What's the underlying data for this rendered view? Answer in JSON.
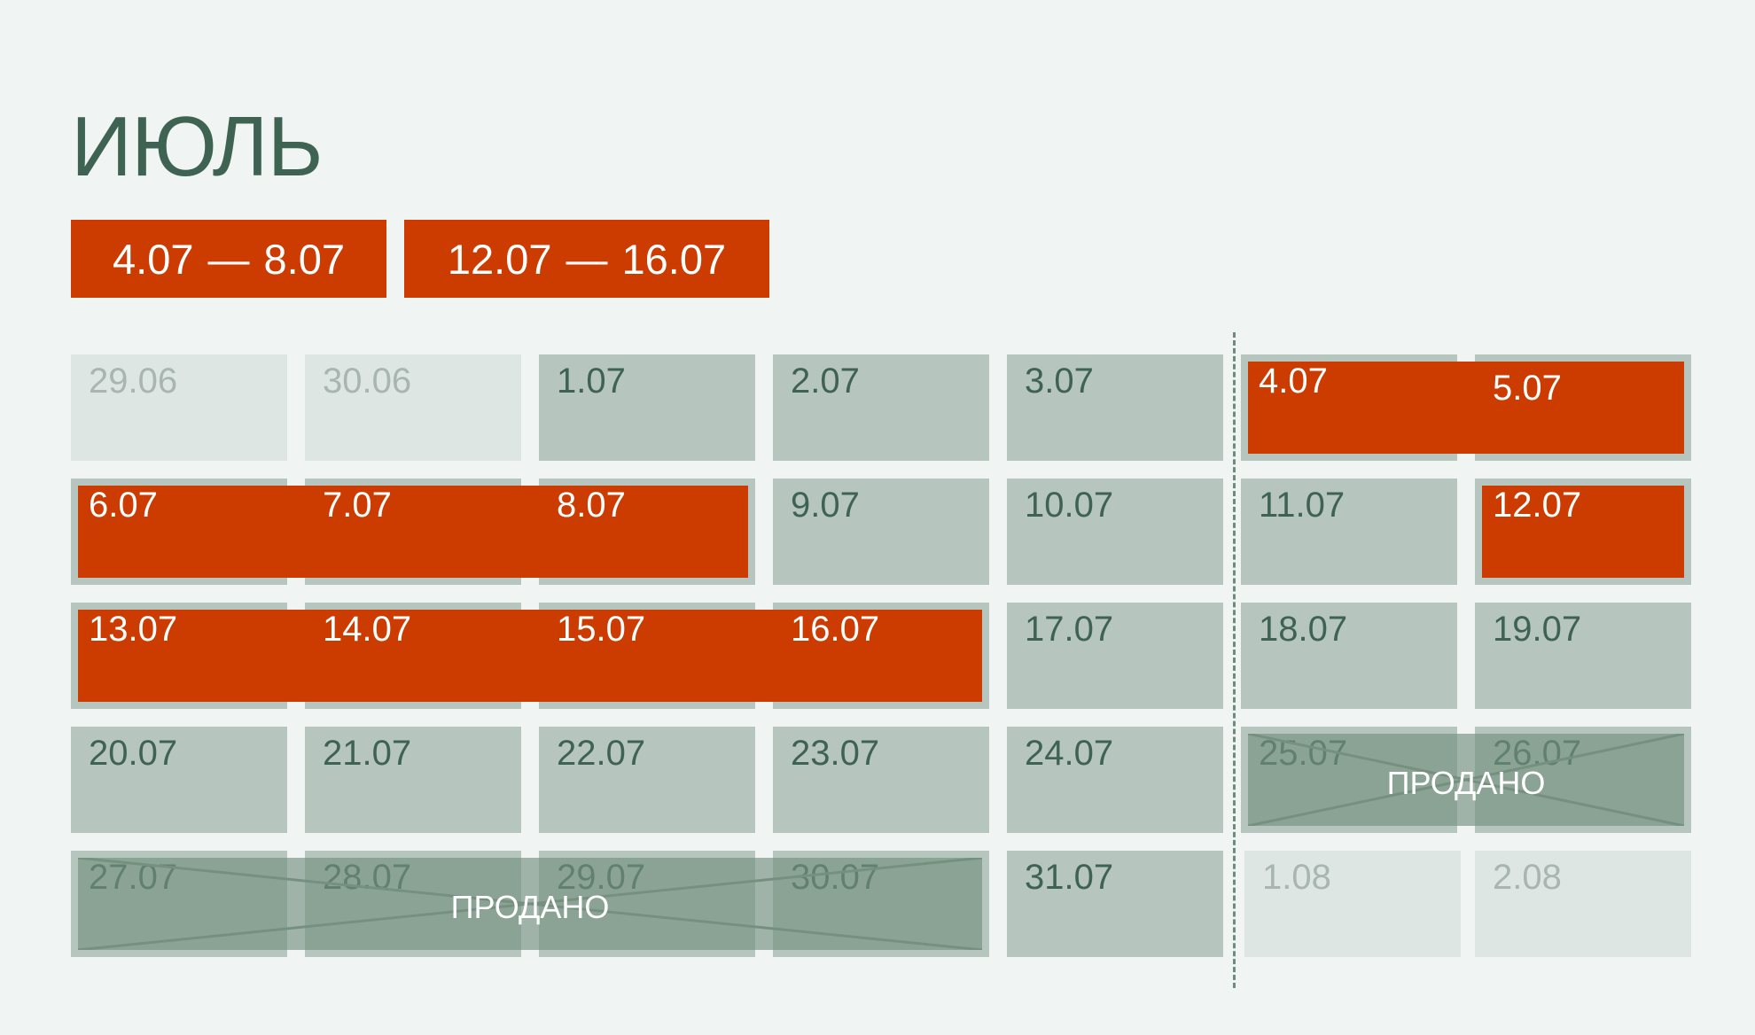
{
  "title": "ИЮЛЬ",
  "ranges": [
    {
      "from": "4.07",
      "sep": "—",
      "to": "8.07"
    },
    {
      "from": "12.07",
      "sep": "—",
      "to": "16.07"
    }
  ],
  "colors": {
    "background": "#f0f4f2",
    "cell": "#b6c6be",
    "cell_muted": "#dde6e2",
    "text": "#3f6353",
    "text_muted": "#a8b5b0",
    "booked": "#cc3b00",
    "sold": "#8ca396"
  },
  "calendar": {
    "rows": [
      [
        {
          "date": "29.06",
          "muted": true
        },
        {
          "date": "30.06",
          "muted": true
        },
        {
          "date": "1.07"
        },
        {
          "date": "2.07"
        },
        {
          "date": "3.07"
        },
        {
          "date": "4.07"
        },
        {
          "date": "5.07"
        }
      ],
      [
        {
          "date": "6.07"
        },
        {
          "date": "7.07"
        },
        {
          "date": "8.07"
        },
        {
          "date": "9.07"
        },
        {
          "date": "10.07"
        },
        {
          "date": "11.07"
        },
        {
          "date": "12.07"
        }
      ],
      [
        {
          "date": "13.07"
        },
        {
          "date": "14.07"
        },
        {
          "date": "15.07"
        },
        {
          "date": "16.07"
        },
        {
          "date": "17.07"
        },
        {
          "date": "18.07"
        },
        {
          "date": "19.07"
        }
      ],
      [
        {
          "date": "20.07"
        },
        {
          "date": "21.07"
        },
        {
          "date": "22.07"
        },
        {
          "date": "23.07"
        },
        {
          "date": "24.07"
        },
        {
          "date": "25.07"
        },
        {
          "date": "26.07"
        }
      ],
      [
        {
          "date": "27.07"
        },
        {
          "date": "28.07"
        },
        {
          "date": "29.07"
        },
        {
          "date": "30.07"
        },
        {
          "date": "31.07"
        },
        {
          "date": "1.08",
          "muted": true
        },
        {
          "date": "2.08",
          "muted": true
        }
      ]
    ],
    "booked": [
      {
        "row": 0,
        "from": 5,
        "to": 6
      },
      {
        "row": 1,
        "from": 0,
        "to": 2
      },
      {
        "row": 1,
        "from": 6,
        "to": 6
      },
      {
        "row": 2,
        "from": 0,
        "to": 3
      }
    ],
    "sold": [
      {
        "row": 3,
        "from": 5,
        "to": 6,
        "label": "ПРОДАНО"
      },
      {
        "row": 4,
        "from": 0,
        "to": 3,
        "label": "ПРОДАНО"
      }
    ]
  }
}
